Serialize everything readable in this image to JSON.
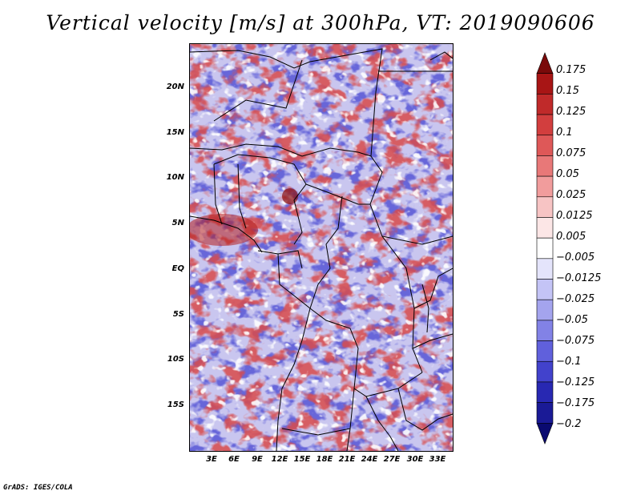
{
  "title": "Vertical velocity [m/s] at 300hPa, VT: 2019090606",
  "credit": "GrADS: IGES/COLA",
  "map": {
    "lat_labels": [
      "20N",
      "15N",
      "10N",
      "5N",
      "EQ",
      "5S",
      "10S",
      "15S"
    ],
    "lon_labels": [
      "3E",
      "6E",
      "9E",
      "12E",
      "15E",
      "18E",
      "21E",
      "24E",
      "27E",
      "30E",
      "33E"
    ]
  },
  "colorbar": {
    "labels": [
      "0.175",
      "0.15",
      "0.125",
      "0.1",
      "0.075",
      "0.05",
      "0.025",
      "0.0125",
      "0.005",
      "−0.005",
      "−0.0125",
      "−0.025",
      "−0.05",
      "−0.075",
      "−0.1",
      "−0.125",
      "−0.175",
      "−0.2"
    ],
    "colors": [
      "#7a0a0a",
      "#a81515",
      "#c02a2a",
      "#d23e3e",
      "#de5858",
      "#e87878",
      "#f19c9c",
      "#f7c4c4",
      "#fce6e6",
      "#ffffff",
      "#e4e4fb",
      "#c4c4f6",
      "#a4a4ee",
      "#8282e6",
      "#6060dc",
      "#4242cc",
      "#2828b2",
      "#1a1a96",
      "#0a0a70"
    ]
  }
}
